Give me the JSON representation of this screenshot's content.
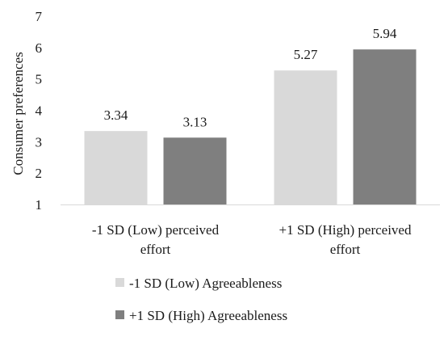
{
  "chart_data": {
    "type": "bar",
    "title": "",
    "xlabel": "",
    "ylabel": "Consumer preferences",
    "ylim": [
      1,
      7
    ],
    "yticks": [
      1,
      2,
      3,
      4,
      5,
      6,
      7
    ],
    "grid": false,
    "legend_position": "bottom",
    "categories": [
      [
        "-1 SD (Low) perceived",
        "effort"
      ],
      [
        "+1 SD (High) perceived",
        "effort"
      ]
    ],
    "series": [
      {
        "name": "-1 SD (Low) Agreeableness",
        "values": [
          3.34,
          5.27
        ],
        "labels": [
          "3.34",
          "5.27"
        ],
        "color": "#d9d9d9"
      },
      {
        "name": "+1 SD (High) Agreeableness",
        "values": [
          3.13,
          5.94
        ],
        "labels": [
          "3.13",
          "5.94"
        ],
        "color": "#7f7f7f"
      }
    ]
  }
}
